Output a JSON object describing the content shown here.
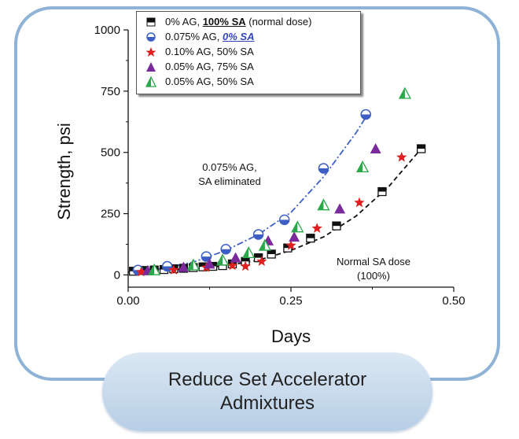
{
  "caption": {
    "line1": "Reduce Set Accelerator",
    "line2": "Admixtures"
  },
  "annotations": {
    "blue_note_line1": "0.075% AG,",
    "blue_note_line2": "SA eliminated",
    "normal_note_line1": "Normal SA dose",
    "normal_note_line2": "(100%)"
  },
  "legend": [
    {
      "pre": "0% AG, ",
      "emph": "100% SA",
      "post": " (normal dose)",
      "style": "bold-u",
      "symbol": "square-black"
    },
    {
      "pre": "0.075% AG, ",
      "emph": "0% SA",
      "post": "",
      "style": "blue-u",
      "symbol": "circle-blue"
    },
    {
      "pre": "0.10% AG, 50% SA",
      "emph": "",
      "post": "",
      "style": "",
      "symbol": "star-red"
    },
    {
      "pre": "0.05% AG, 75% SA",
      "emph": "",
      "post": "",
      "style": "",
      "symbol": "triangle-purple"
    },
    {
      "pre": "0.05% AG, 50% SA",
      "emph": "",
      "post": "",
      "style": "",
      "symbol": "triangle-green"
    }
  ],
  "chart_data": {
    "type": "scatter",
    "xlabel": "Days",
    "ylabel": "Strength, psi",
    "xlim": [
      0,
      0.5
    ],
    "ylim": [
      -50,
      1000
    ],
    "xticks": [
      "0.00",
      "0.25",
      "0.50"
    ],
    "yticks": [
      "0",
      "250",
      "500",
      "750",
      "1000"
    ],
    "grid": false,
    "legend_position": "top",
    "colors": {
      "black": "#111111",
      "blue": "#3d5fc4",
      "red": "#e02020",
      "purple": "#7a2a9a",
      "green": "#2aa84a"
    },
    "series": [
      {
        "name": "0% AG, 100% SA (normal dose)",
        "marker": "square-black",
        "x": [
          0.008,
          0.025,
          0.04,
          0.055,
          0.07,
          0.085,
          0.1,
          0.115,
          0.13,
          0.145,
          0.16,
          0.18,
          0.2,
          0.22,
          0.245,
          0.28,
          0.32,
          0.39,
          0.45
        ],
        "y": [
          15,
          18,
          20,
          22,
          25,
          27,
          30,
          33,
          35,
          38,
          45,
          55,
          70,
          85,
          110,
          150,
          200,
          340,
          515
        ]
      },
      {
        "name": "0.075% AG, 0% SA",
        "marker": "circle-blue",
        "x": [
          0.015,
          0.06,
          0.12,
          0.15,
          0.2,
          0.24,
          0.3,
          0.365
        ],
        "y": [
          20,
          35,
          75,
          105,
          165,
          225,
          435,
          655
        ]
      },
      {
        "name": "0.10% AG, 50% SA",
        "marker": "star-red",
        "x": [
          0.02,
          0.07,
          0.12,
          0.16,
          0.18,
          0.205,
          0.25,
          0.29,
          0.355,
          0.42
        ],
        "y": [
          12,
          20,
          30,
          38,
          35,
          55,
          120,
          190,
          295,
          480
        ]
      },
      {
        "name": "0.05% AG, 75% SA",
        "marker": "triangle-purple",
        "x": [
          0.03,
          0.085,
          0.125,
          0.165,
          0.215,
          0.255,
          0.325,
          0.38
        ],
        "y": [
          18,
          32,
          45,
          70,
          140,
          155,
          270,
          515
        ]
      },
      {
        "name": "0.05% AG, 50% SA",
        "marker": "triangle-green",
        "x": [
          0.04,
          0.1,
          0.145,
          0.185,
          0.21,
          0.26,
          0.3,
          0.36,
          0.425
        ],
        "y": [
          20,
          40,
          60,
          90,
          120,
          195,
          285,
          440,
          740
        ]
      }
    ],
    "fits": [
      {
        "name": "blue-fit",
        "style": "dash-dot",
        "color": "#3d5fc4",
        "x": [
          0.0,
          0.05,
          0.1,
          0.15,
          0.2,
          0.25,
          0.3,
          0.35,
          0.37
        ],
        "y": [
          12,
          25,
          52,
          100,
          165,
          255,
          400,
          580,
          665
        ]
      },
      {
        "name": "black-fit",
        "style": "dashed",
        "color": "#111111",
        "x": [
          0.0,
          0.05,
          0.1,
          0.15,
          0.2,
          0.25,
          0.3,
          0.35,
          0.4,
          0.45
        ],
        "y": [
          12,
          18,
          26,
          38,
          60,
          100,
          155,
          240,
          360,
          515
        ]
      }
    ]
  }
}
